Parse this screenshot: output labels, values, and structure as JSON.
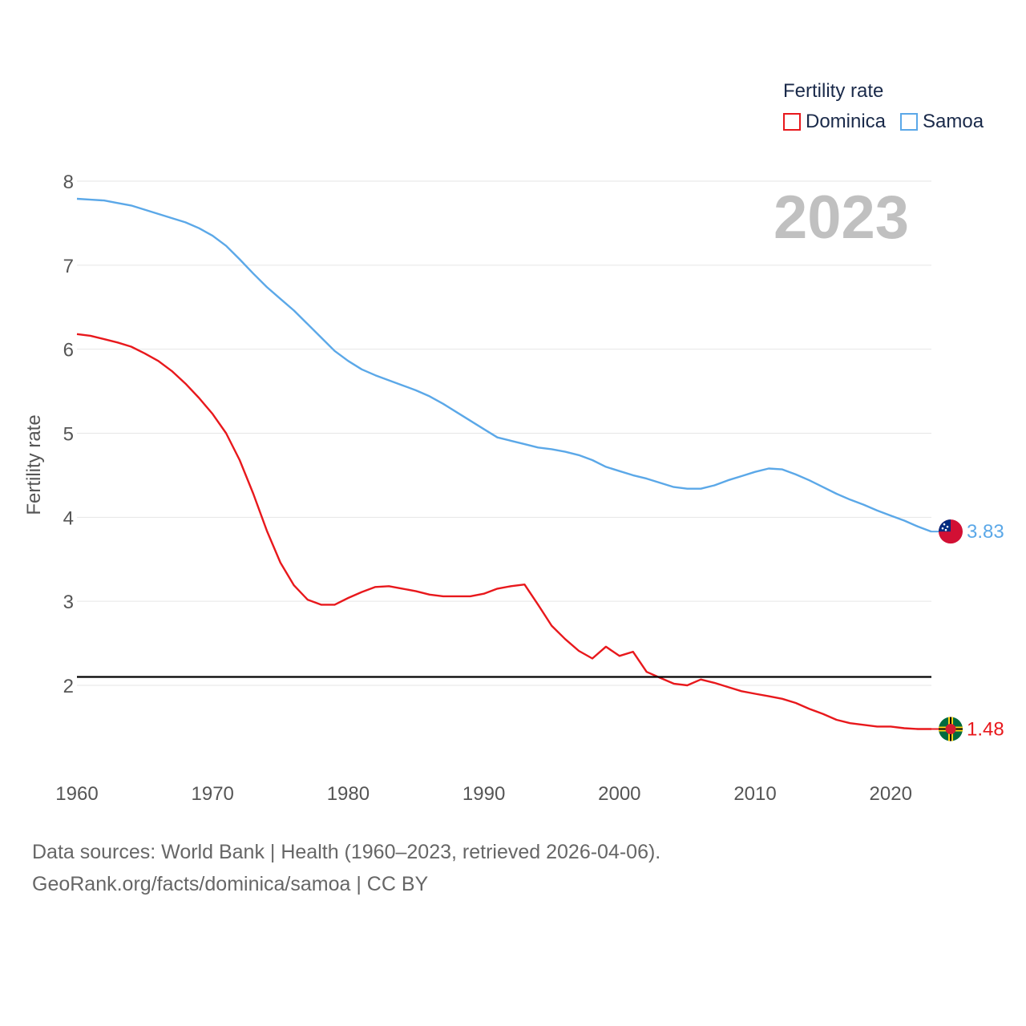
{
  "chart_data": {
    "type": "line",
    "title": "Fertility rate",
    "ylabel": "Fertility rate",
    "xlabel": "",
    "xlim": [
      1960,
      2023
    ],
    "ylim": [
      1,
      8
    ],
    "yticks": [
      2,
      3,
      4,
      5,
      6,
      7,
      8
    ],
    "xticks": [
      1960,
      1970,
      1980,
      1990,
      2000,
      2010,
      2020
    ],
    "reference_line": 2.1,
    "year_label": "2023",
    "series": [
      {
        "name": "Dominica",
        "color": "#e8181c",
        "end_label": "1.48",
        "flag": "dominica-flag-icon",
        "x": [
          1960,
          1961,
          1962,
          1963,
          1964,
          1965,
          1966,
          1967,
          1968,
          1969,
          1970,
          1971,
          1972,
          1973,
          1974,
          1975,
          1976,
          1977,
          1978,
          1979,
          1980,
          1981,
          1982,
          1983,
          1984,
          1985,
          1986,
          1987,
          1988,
          1989,
          1990,
          1991,
          1992,
          1993,
          1994,
          1995,
          1996,
          1997,
          1998,
          1999,
          2000,
          2001,
          2002,
          2003,
          2004,
          2005,
          2006,
          2007,
          2008,
          2009,
          2010,
          2011,
          2012,
          2013,
          2014,
          2015,
          2016,
          2017,
          2018,
          2019,
          2020,
          2021,
          2022,
          2023
        ],
        "y": [
          6.18,
          6.16,
          6.12,
          6.08,
          6.03,
          5.95,
          5.86,
          5.74,
          5.59,
          5.42,
          5.23,
          5.0,
          4.68,
          4.28,
          3.84,
          3.46,
          3.19,
          3.02,
          2.96,
          2.96,
          3.04,
          3.11,
          3.17,
          3.18,
          3.15,
          3.12,
          3.08,
          3.06,
          3.06,
          3.06,
          3.09,
          3.15,
          3.18,
          3.2,
          2.96,
          2.71,
          2.55,
          2.41,
          2.32,
          2.46,
          2.35,
          2.4,
          2.16,
          2.09,
          2.02,
          2.0,
          2.07,
          2.03,
          1.98,
          1.93,
          1.9,
          1.87,
          1.84,
          1.79,
          1.72,
          1.66,
          1.59,
          1.55,
          1.53,
          1.51,
          1.51,
          1.49,
          1.48,
          1.48
        ]
      },
      {
        "name": "Samoa",
        "color": "#5ba8e8",
        "end_label": "3.83",
        "flag": "samoa-flag-icon",
        "x": [
          1960,
          1961,
          1962,
          1963,
          1964,
          1965,
          1966,
          1967,
          1968,
          1969,
          1970,
          1971,
          1972,
          1973,
          1974,
          1975,
          1976,
          1977,
          1978,
          1979,
          1980,
          1981,
          1982,
          1983,
          1984,
          1985,
          1986,
          1987,
          1988,
          1989,
          1990,
          1991,
          1992,
          1993,
          1994,
          1995,
          1996,
          1997,
          1998,
          1999,
          2000,
          2001,
          2002,
          2003,
          2004,
          2005,
          2006,
          2007,
          2008,
          2009,
          2010,
          2011,
          2012,
          2013,
          2014,
          2015,
          2016,
          2017,
          2018,
          2019,
          2020,
          2021,
          2022,
          2023
        ],
        "y": [
          7.79,
          7.78,
          7.77,
          7.74,
          7.71,
          7.66,
          7.61,
          7.56,
          7.51,
          7.44,
          7.35,
          7.23,
          7.07,
          6.9,
          6.74,
          6.6,
          6.46,
          6.3,
          6.14,
          5.98,
          5.86,
          5.76,
          5.69,
          5.63,
          5.57,
          5.51,
          5.44,
          5.35,
          5.25,
          5.15,
          5.05,
          4.95,
          4.91,
          4.87,
          4.83,
          4.81,
          4.78,
          4.74,
          4.68,
          4.6,
          4.55,
          4.5,
          4.46,
          4.41,
          4.36,
          4.34,
          4.34,
          4.38,
          4.44,
          4.49,
          4.54,
          4.58,
          4.57,
          4.51,
          4.44,
          4.36,
          4.28,
          4.21,
          4.15,
          4.08,
          4.02,
          3.96,
          3.89,
          3.83
        ]
      }
    ]
  },
  "footer": {
    "line1": "Data sources: World Bank | Health (1960–2023, retrieved 2026-04-06).",
    "line2": "GeoRank.org/facts/dominica/samoa | CC BY"
  }
}
